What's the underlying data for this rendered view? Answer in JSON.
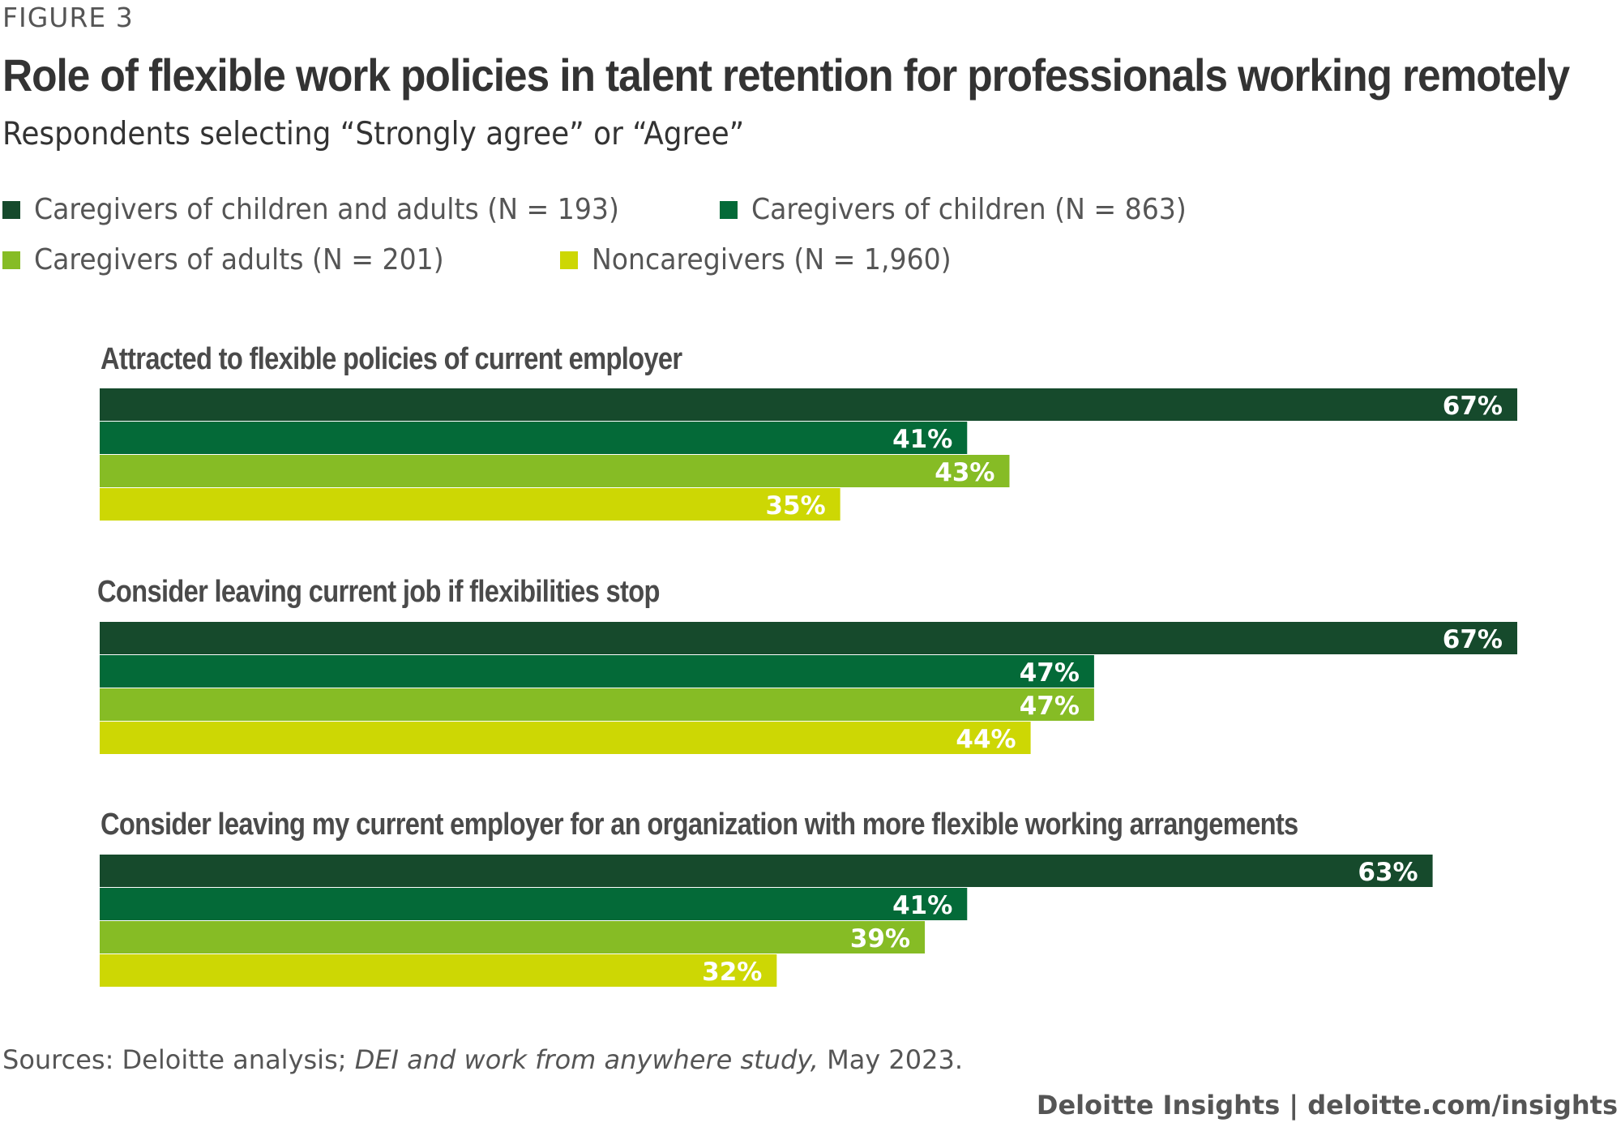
{
  "figure_label": "FIGURE 3",
  "title": "Role of flexible work policies in talent retention for professionals working remotely",
  "subtitle": "Respondents selecting “Strongly agree” or “Agree”",
  "source": {
    "prefix": "Sources: Deloitte analysis; ",
    "italic": "DEI and work from anywhere study,",
    "suffix": " May 2023."
  },
  "brand": "Deloitte Insights | deloitte.com/insights",
  "chart_data": {
    "type": "bar",
    "orientation": "horizontal",
    "value_format": "percent",
    "categories": [
      "Attracted to flexible policies of current employer",
      "Consider leaving current job if flexibilities stop",
      "Consider leaving my current employer for an organization with more flexible working arrangements"
    ],
    "series": [
      {
        "name": "Caregivers of children and adults (N = 193)",
        "color": "#164a2c",
        "values": [
          67,
          67,
          63
        ]
      },
      {
        "name": "Caregivers of children (N = 863)",
        "color": "#046a38",
        "values": [
          41,
          47,
          41
        ]
      },
      {
        "name": "Caregivers of adults (N = 201)",
        "color": "#86bc25",
        "values": [
          43,
          47,
          39
        ]
      },
      {
        "name": "Noncaregivers (N = 1,960)",
        "color": "#cdd704",
        "values": [
          35,
          44,
          32
        ]
      }
    ],
    "data_labels": [
      [
        "67%",
        "41%",
        "43%",
        "35%"
      ],
      [
        "67%",
        "47%",
        "47%",
        "44%"
      ],
      [
        "63%",
        "41%",
        "39%",
        "32%"
      ]
    ],
    "legend_position": "top-left",
    "grid": false,
    "xlim": [
      0,
      67
    ]
  }
}
